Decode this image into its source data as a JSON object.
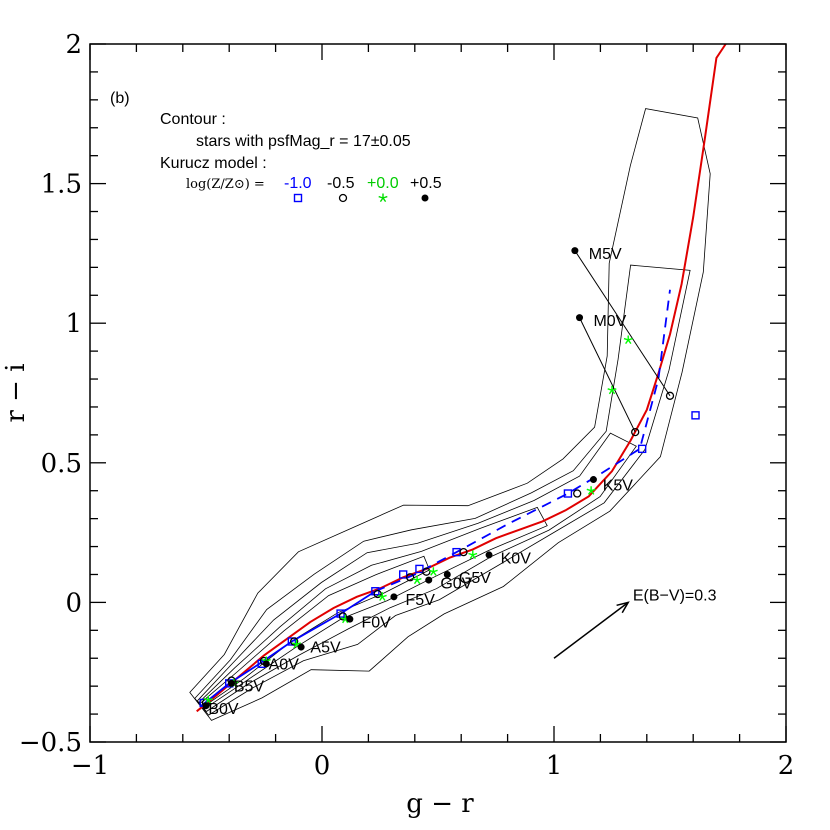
{
  "chart_data": {
    "type": "scatter",
    "panel_label": "(b)",
    "xlabel": "g − r",
    "ylabel": "r − i",
    "xlim": [
      -1,
      2
    ],
    "ylim": [
      -0.5,
      2
    ],
    "x_ticks": [
      {
        "value": -1,
        "label": "−1"
      },
      {
        "value": 0,
        "label": "0"
      },
      {
        "value": 1,
        "label": "1"
      },
      {
        "value": 2,
        "label": "2"
      }
    ],
    "y_ticks": [
      {
        "value": -0.5,
        "label": "−0.5"
      },
      {
        "value": 0,
        "label": "0"
      },
      {
        "value": 0.5,
        "label": "0.5"
      },
      {
        "value": 1,
        "label": "1"
      },
      {
        "value": 1.5,
        "label": "1.5"
      },
      {
        "value": 2,
        "label": "2"
      }
    ],
    "annotations": {
      "contour_title": "Contour :",
      "contour_desc": "stars with psfMag_r = 17±0.05",
      "kurucz_title": "Kurucz model :",
      "logz_label": "log(Z/Z⊙) =",
      "reddening_label": "E(B−V)=0.3"
    },
    "legend": [
      {
        "label": "-1.0",
        "color": "#0000ff",
        "marker": "open-square"
      },
      {
        "label": "-0.5",
        "color": "#000000",
        "marker": "open-circle"
      },
      {
        "label": "+0.0",
        "color": "#00ff00",
        "marker": "star"
      },
      {
        "label": "+0.5",
        "color": "#000000",
        "marker": "filled-circle"
      }
    ],
    "curves": [
      {
        "name": "locus",
        "color": "#e00000",
        "style": "solid",
        "x": [
          -0.54,
          -0.45,
          -0.35,
          -0.25,
          -0.15,
          -0.05,
          0.05,
          0.15,
          0.25,
          0.35,
          0.45,
          0.55,
          0.65,
          0.75,
          0.85,
          0.95,
          1.05,
          1.15,
          1.25,
          1.33,
          1.4,
          1.45,
          1.5,
          1.55,
          1.6,
          1.65,
          1.7,
          1.74
        ],
        "y": [
          -0.39,
          -0.33,
          -0.26,
          -0.19,
          -0.13,
          -0.07,
          -0.02,
          0.02,
          0.05,
          0.09,
          0.12,
          0.16,
          0.19,
          0.23,
          0.26,
          0.29,
          0.33,
          0.38,
          0.47,
          0.58,
          0.69,
          0.82,
          0.96,
          1.14,
          1.38,
          1.66,
          1.95,
          2.0
        ]
      },
      {
        "name": "kurucz -1.0",
        "color": "#0000ff",
        "style": "solid",
        "x": [
          -0.52,
          -0.4,
          -0.27,
          -0.13,
          0.08,
          0.23
        ],
        "y": [
          -0.37,
          -0.29,
          -0.22,
          -0.14,
          -0.04,
          0.04
        ]
      },
      {
        "name": "kurucz -1.0 giant",
        "color": "#0000ff",
        "style": "dashed",
        "x": [
          0.23,
          0.4,
          0.58,
          0.8,
          1.06,
          1.2,
          1.37,
          1.45,
          1.5
        ],
        "y": [
          0.04,
          0.1,
          0.18,
          0.28,
          0.39,
          0.46,
          0.55,
          0.8,
          1.12
        ]
      }
    ],
    "series": [
      {
        "name": "-1.0",
        "color": "#0000ff",
        "marker": "open-square",
        "x": [
          -0.51,
          -0.4,
          -0.26,
          -0.13,
          0.08,
          0.23,
          0.35,
          0.42,
          0.58,
          1.06,
          1.38,
          1.61
        ],
        "y": [
          -0.36,
          -0.29,
          -0.22,
          -0.14,
          -0.04,
          0.04,
          0.1,
          0.12,
          0.18,
          0.39,
          0.55,
          0.67
        ]
      },
      {
        "name": "-0.5",
        "color": "#000000",
        "marker": "open-circle",
        "x": [
          -0.5,
          -0.39,
          -0.25,
          -0.12,
          0.09,
          0.24,
          0.38,
          0.45,
          0.61,
          1.1,
          1.35,
          1.5
        ],
        "y": [
          -0.36,
          -0.28,
          -0.21,
          -0.14,
          -0.05,
          0.03,
          0.09,
          0.11,
          0.18,
          0.39,
          0.61,
          0.74
        ]
      },
      {
        "name": "+0.0",
        "color": "#00ff00",
        "marker": "star",
        "x": [
          -0.49,
          -0.38,
          -0.24,
          -0.11,
          0.1,
          0.26,
          0.41,
          0.48,
          0.65,
          1.16,
          1.25,
          1.32
        ],
        "y": [
          -0.35,
          -0.29,
          -0.21,
          -0.15,
          -0.06,
          0.02,
          0.08,
          0.11,
          0.17,
          0.4,
          0.76,
          0.94
        ]
      },
      {
        "name": "+0.5",
        "color": "#000000",
        "marker": "filled-circle",
        "x": [
          -0.5,
          -0.39,
          -0.24,
          -0.09,
          0.12,
          0.31,
          0.46,
          0.54,
          0.72,
          1.17,
          1.11,
          1.09
        ],
        "y": [
          -0.37,
          -0.29,
          -0.22,
          -0.16,
          -0.06,
          0.02,
          0.08,
          0.1,
          0.17,
          0.44,
          1.02,
          1.26
        ]
      }
    ],
    "spectral_types": [
      {
        "label": "B0V",
        "x": -0.5,
        "y": -0.37,
        "lx": -0.49,
        "ly": -0.4
      },
      {
        "label": "B5V",
        "x": -0.39,
        "y": -0.29,
        "lx": -0.38,
        "ly": -0.32
      },
      {
        "label": "A0V",
        "x": -0.25,
        "y": -0.21,
        "lx": -0.23,
        "ly": -0.24
      },
      {
        "label": "A5V",
        "x": -0.11,
        "y": -0.15,
        "lx": -0.05,
        "ly": -0.18
      },
      {
        "label": "F0V",
        "x": 0.12,
        "y": -0.06,
        "lx": 0.17,
        "ly": -0.09
      },
      {
        "label": "F5V",
        "x": 0.31,
        "y": 0.02,
        "lx": 0.36,
        "ly": -0.01
      },
      {
        "label": "G0V",
        "x": 0.46,
        "y": 0.08,
        "lx": 0.51,
        "ly": 0.05
      },
      {
        "label": "G5V",
        "x": 0.54,
        "y": 0.1,
        "lx": 0.59,
        "ly": 0.07
      },
      {
        "label": "K0V",
        "x": 0.72,
        "y": 0.17,
        "lx": 0.77,
        "ly": 0.14
      },
      {
        "label": "K5V",
        "x": 1.17,
        "y": 0.44,
        "lx": 1.21,
        "ly": 0.4
      },
      {
        "label": "M0V",
        "x": 1.11,
        "y": 1.02,
        "lx": 1.17,
        "ly": 0.99
      },
      {
        "label": "M5V",
        "x": 1.09,
        "y": 1.26,
        "lx": 1.15,
        "ly": 1.23
      }
    ],
    "model_connectors": [
      {
        "x": [
          1.11,
          1.35
        ],
        "y": [
          1.02,
          0.61
        ]
      },
      {
        "x": [
          1.09,
          1.5
        ],
        "y": [
          1.26,
          0.74
        ]
      }
    ],
    "reddening_vector": {
      "x0": 1.0,
      "y0": -0.2,
      "x1": 1.32,
      "y1": 0.0,
      "label_x": 1.34,
      "label_y": 0.0
    },
    "contour_levels": [
      {
        "color": "#000000"
      },
      {
        "color": "#000000"
      },
      {
        "color": "#000000"
      },
      {
        "color": "#000000"
      },
      {
        "color": "#000000"
      }
    ]
  }
}
